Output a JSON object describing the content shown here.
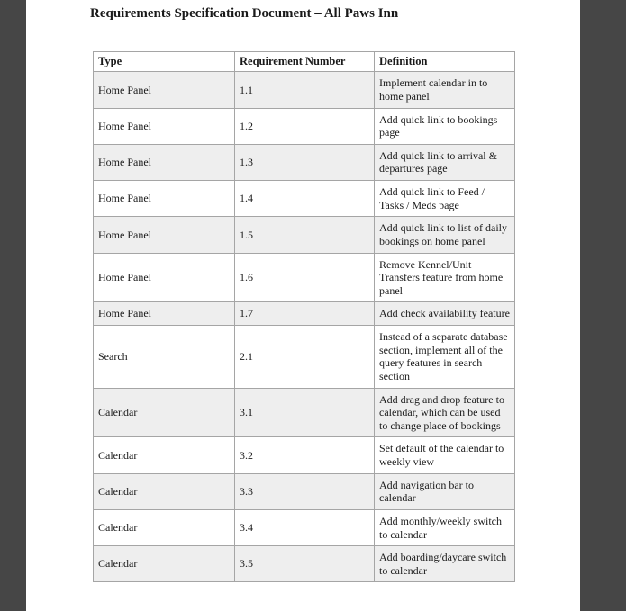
{
  "document": {
    "title": "Requirements Specification Document – All Paws Inn",
    "table": {
      "headers": [
        "Type",
        "Requirement Number",
        "Definition"
      ],
      "rows": [
        {
          "type": "Home Panel",
          "number": "1.1",
          "definition": "Implement calendar in to home panel"
        },
        {
          "type": "Home Panel",
          "number": "1.2",
          "definition": "Add quick link to bookings page"
        },
        {
          "type": "Home Panel",
          "number": "1.3",
          "definition": "Add quick link to arrival & departures page"
        },
        {
          "type": "Home Panel",
          "number": "1.4",
          "definition": "Add quick link to Feed / Tasks / Meds page"
        },
        {
          "type": "Home Panel",
          "number": "1.5",
          "definition": "Add quick link to list of daily bookings on home panel"
        },
        {
          "type": "Home Panel",
          "number": "1.6",
          "definition": "Remove Kennel/Unit Transfers feature from home panel"
        },
        {
          "type": "Home Panel",
          "number": "1.7",
          "definition": "Add check availability feature"
        },
        {
          "type": "Search",
          "number": "2.1",
          "definition": "Instead of a separate database section, implement all of the query features in search section"
        },
        {
          "type": "Calendar",
          "number": "3.1",
          "definition": "Add drag and drop feature to calendar, which can be used to change place of bookings"
        },
        {
          "type": "Calendar",
          "number": "3.2",
          "definition": "Set default of the calendar to weekly view"
        },
        {
          "type": "Calendar",
          "number": "3.3",
          "definition": "Add navigation bar to calendar"
        },
        {
          "type": "Calendar",
          "number": "3.4",
          "definition": "Add monthly/weekly switch to calendar"
        },
        {
          "type": "Calendar",
          "number": "3.5",
          "definition": "Add boarding/daycare switch to calendar"
        }
      ]
    }
  },
  "colors": {
    "chrome_dark": "#464646",
    "row_stripe": "#eeeeee",
    "table_border": "#a5a5a5",
    "text_color": "#1a1a1a",
    "page_bg": "#ffffff"
  }
}
